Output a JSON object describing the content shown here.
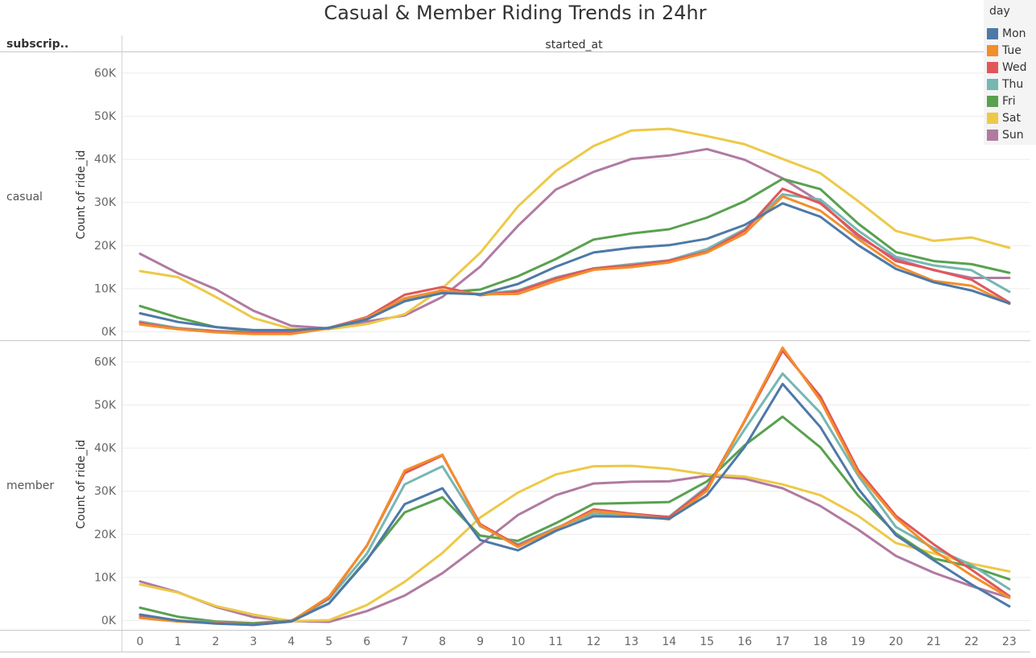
{
  "title": "Casual & Member Riding Trends in 24hr",
  "header": {
    "row_header": "subscrip..",
    "column_header": "started_at"
  },
  "legend": {
    "title": "day",
    "items": [
      {
        "label": "Mon",
        "color": "#4e79a7"
      },
      {
        "label": "Tue",
        "color": "#f28e2b"
      },
      {
        "label": "Wed",
        "color": "#e15759"
      },
      {
        "label": "Thu",
        "color": "#76b7b2"
      },
      {
        "label": "Fri",
        "color": "#59a14f"
      },
      {
        "label": "Sat",
        "color": "#edc948"
      },
      {
        "label": "Sun",
        "color": "#b07aa1"
      }
    ]
  },
  "chart_data": [
    {
      "type": "line",
      "panel": "casual",
      "ylabel": "Count of ride_id",
      "ylim": [
        0,
        65000
      ],
      "yticks": [
        0,
        10000,
        20000,
        30000,
        40000,
        50000,
        60000
      ],
      "ytick_labels": [
        "0K",
        "10K",
        "20K",
        "30K",
        "40K",
        "50K",
        "60K"
      ],
      "x": [
        0,
        1,
        2,
        3,
        4,
        5,
        6,
        7,
        8,
        9,
        10,
        11,
        12,
        13,
        14,
        15,
        16,
        17,
        18,
        19,
        20,
        21,
        22,
        23
      ],
      "series": [
        {
          "name": "Mon",
          "color": "#4e79a7",
          "values": [
            4200,
            2200,
            1000,
            300,
            300,
            800,
            2800,
            7000,
            8900,
            8600,
            11000,
            15000,
            18300,
            19400,
            20000,
            21500,
            24700,
            29700,
            26600,
            20000,
            14500,
            11400,
            9500,
            6500
          ]
        },
        {
          "name": "Tue",
          "color": "#f28e2b",
          "values": [
            1600,
            500,
            -200,
            -600,
            -600,
            700,
            3100,
            7700,
            9500,
            8600,
            8700,
            11700,
            14300,
            14900,
            16000,
            18300,
            22700,
            31300,
            28000,
            21400,
            15300,
            11700,
            10600,
            6400
          ]
        },
        {
          "name": "Wed",
          "color": "#e15759",
          "values": [
            2000,
            600,
            0,
            -300,
            -300,
            800,
            3300,
            8500,
            10300,
            8400,
            9300,
            12300,
            14600,
            15300,
            16400,
            18500,
            23400,
            33100,
            29700,
            22400,
            16300,
            14300,
            12000,
            6700
          ]
        },
        {
          "name": "Thu",
          "color": "#76b7b2",
          "values": [
            2300,
            800,
            100,
            -200,
            -100,
            900,
            3000,
            7600,
            9300,
            8700,
            9500,
            12500,
            14600,
            15600,
            16500,
            19100,
            23700,
            31800,
            30600,
            23400,
            17300,
            15300,
            14200,
            9200
          ]
        },
        {
          "name": "Fri",
          "color": "#59a14f",
          "values": [
            5900,
            3200,
            1000,
            100,
            0,
            700,
            2800,
            7200,
            9000,
            9700,
            12800,
            16800,
            21300,
            22700,
            23700,
            26400,
            30200,
            35400,
            33000,
            25000,
            18400,
            16300,
            15600,
            13600
          ]
        },
        {
          "name": "Sat",
          "color": "#edc948",
          "values": [
            14000,
            12600,
            8000,
            3100,
            600,
            500,
            1700,
            4000,
            10000,
            18200,
            29000,
            37200,
            43000,
            46600,
            47000,
            45300,
            43400,
            40000,
            36700,
            30200,
            23300,
            21000,
            21800,
            19400
          ]
        },
        {
          "name": "Sun",
          "color": "#b07aa1",
          "values": [
            18000,
            13500,
            9800,
            4800,
            1300,
            700,
            2300,
            3700,
            8000,
            15000,
            24500,
            32900,
            37000,
            40000,
            40800,
            42300,
            39800,
            35500,
            30000,
            22000,
            16800,
            14200,
            12400,
            12400
          ]
        }
      ]
    },
    {
      "type": "line",
      "panel": "member",
      "ylabel": "Count of ride_id",
      "ylim": [
        0,
        65000
      ],
      "yticks": [
        0,
        10000,
        20000,
        30000,
        40000,
        50000,
        60000
      ],
      "ytick_labels": [
        "0K",
        "10K",
        "20K",
        "30K",
        "40K",
        "50K",
        "60K"
      ],
      "x": [
        0,
        1,
        2,
        3,
        4,
        5,
        6,
        7,
        8,
        9,
        10,
        11,
        12,
        13,
        14,
        15,
        16,
        17,
        18,
        19,
        20,
        21,
        22,
        23
      ],
      "series": [
        {
          "name": "Mon",
          "color": "#4e79a7",
          "values": [
            1300,
            -100,
            -800,
            -1100,
            -300,
            3900,
            13900,
            26900,
            30600,
            18600,
            16200,
            20700,
            24100,
            24000,
            23500,
            29000,
            40200,
            54800,
            44800,
            30500,
            19700,
            13900,
            8300,
            3200
          ]
        },
        {
          "name": "Tue",
          "color": "#f28e2b",
          "values": [
            500,
            -300,
            -700,
            -1100,
            -300,
            5500,
            17200,
            34700,
            38400,
            22000,
            17000,
            21200,
            25300,
            24500,
            23400,
            30000,
            46400,
            63200,
            51000,
            34100,
            23700,
            16200,
            10400,
            5200
          ]
        },
        {
          "name": "Wed",
          "color": "#e15759",
          "values": [
            700,
            -200,
            -600,
            -1000,
            -200,
            5200,
            17300,
            34100,
            38200,
            22300,
            17300,
            21200,
            25700,
            24700,
            23900,
            30600,
            46200,
            62500,
            51900,
            34800,
            24200,
            17600,
            11700,
            5600
          ]
        },
        {
          "name": "Thu",
          "color": "#76b7b2",
          "values": [
            1100,
            -100,
            -500,
            -1000,
            -200,
            4900,
            15400,
            31500,
            35700,
            21800,
            17600,
            21400,
            24700,
            24500,
            24000,
            31000,
            44300,
            57200,
            48100,
            33500,
            21600,
            16700,
            12800,
            7200
          ]
        },
        {
          "name": "Fri",
          "color": "#59a14f",
          "values": [
            2900,
            800,
            -300,
            -700,
            -100,
            3900,
            14100,
            25000,
            28500,
            19600,
            18400,
            22500,
            27000,
            27200,
            27400,
            32200,
            40600,
            47200,
            40100,
            28900,
            20100,
            14300,
            12400,
            9500
          ]
        },
        {
          "name": "Sat",
          "color": "#edc948",
          "values": [
            8300,
            6400,
            3300,
            1300,
            -200,
            0,
            3500,
            8900,
            15600,
            23800,
            29600,
            33800,
            35700,
            35800,
            35100,
            33800,
            33300,
            31500,
            29000,
            24200,
            17900,
            15500,
            13100,
            11300
          ]
        },
        {
          "name": "Sun",
          "color": "#b07aa1",
          "values": [
            9000,
            6500,
            3100,
            700,
            -200,
            -400,
            2100,
            5700,
            10900,
            17500,
            24400,
            29000,
            31700,
            32100,
            32200,
            33500,
            32800,
            30600,
            26500,
            21000,
            14900,
            11000,
            7900,
            5200
          ]
        }
      ]
    }
  ]
}
